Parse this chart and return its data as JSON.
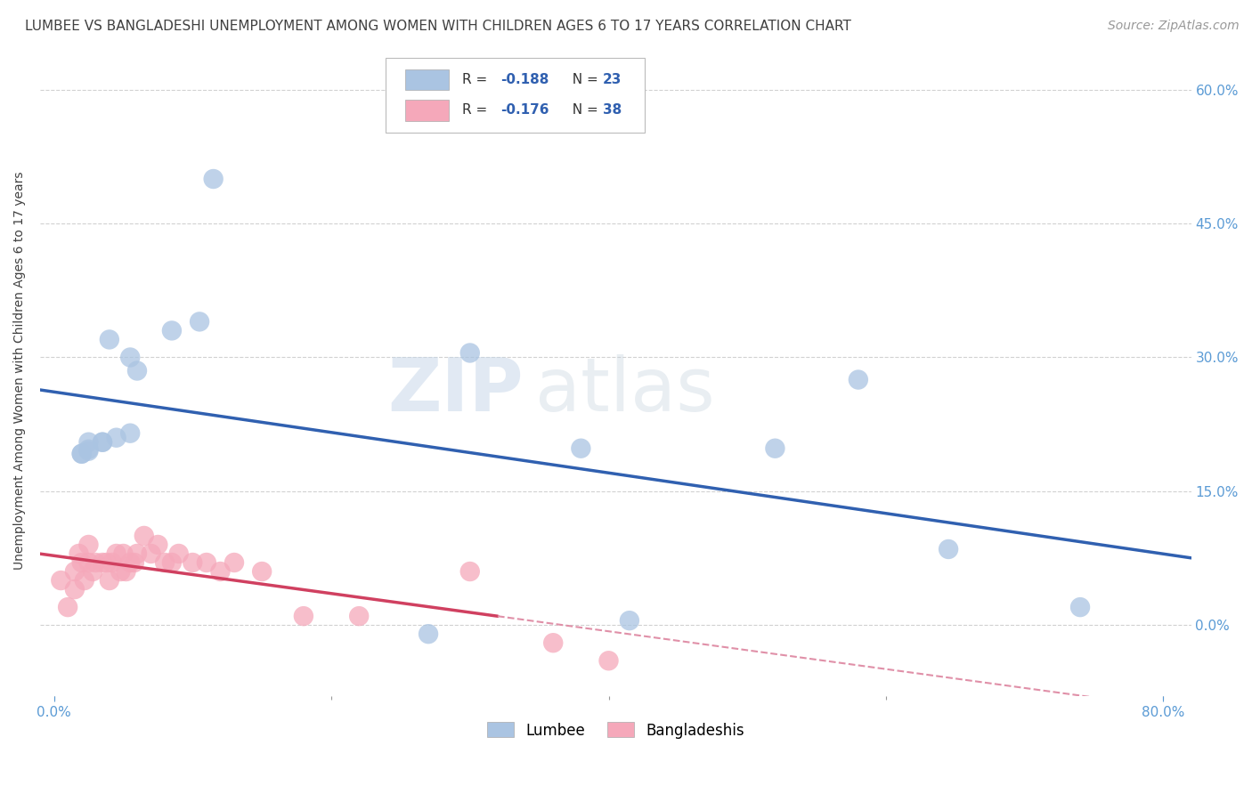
{
  "title": "LUMBEE VS BANGLADESHI UNEMPLOYMENT AMONG WOMEN WITH CHILDREN AGES 6 TO 17 YEARS CORRELATION CHART",
  "source": "Source: ZipAtlas.com",
  "ylabel": "Unemployment Among Women with Children Ages 6 to 17 years",
  "xlim": [
    -0.01,
    0.82
  ],
  "ylim": [
    -0.08,
    0.65
  ],
  "xticks": [
    0.0,
    0.2,
    0.4,
    0.6,
    0.8
  ],
  "xticklabels": [
    "0.0%",
    "",
    "",
    "",
    "80.0%"
  ],
  "yticks": [
    0.0,
    0.15,
    0.3,
    0.45,
    0.6
  ],
  "yticklabels": [
    "0.0%",
    "15.0%",
    "30.0%",
    "45.0%",
    "60.0%"
  ],
  "watermark_zip": "ZIP",
  "watermark_atlas": "atlas",
  "lumbee_R": "-0.188",
  "lumbee_N": "23",
  "bangladeshi_R": "-0.176",
  "bangladeshi_N": "38",
  "lumbee_color": "#aac4e2",
  "bangladeshi_color": "#f5a8ba",
  "lumbee_line_color": "#3060b0",
  "bangladeshi_line_color": "#d04060",
  "bangladeshi_line_dashed_color": "#e090a8",
  "legend_lumbee": "Lumbee",
  "legend_bangladeshi": "Bangladeshis",
  "lumbee_x": [
    0.085,
    0.115,
    0.105,
    0.04,
    0.055,
    0.06,
    0.035,
    0.025,
    0.035,
    0.045,
    0.055,
    0.3,
    0.025,
    0.02,
    0.02,
    0.025,
    0.38,
    0.52,
    0.58,
    0.74,
    0.645,
    0.27,
    0.415
  ],
  "lumbee_y": [
    0.33,
    0.5,
    0.34,
    0.32,
    0.3,
    0.285,
    0.205,
    0.205,
    0.205,
    0.21,
    0.215,
    0.305,
    0.195,
    0.192,
    0.192,
    0.197,
    0.198,
    0.198,
    0.275,
    0.02,
    0.085,
    -0.01,
    0.005
  ],
  "bangladeshi_x": [
    0.005,
    0.01,
    0.015,
    0.015,
    0.018,
    0.02,
    0.022,
    0.025,
    0.025,
    0.028,
    0.03,
    0.035,
    0.038,
    0.04,
    0.042,
    0.045,
    0.048,
    0.05,
    0.052,
    0.055,
    0.058,
    0.06,
    0.065,
    0.07,
    0.075,
    0.08,
    0.085,
    0.09,
    0.1,
    0.11,
    0.12,
    0.13,
    0.15,
    0.18,
    0.22,
    0.3,
    0.36,
    0.4
  ],
  "bangladeshi_y": [
    0.05,
    0.02,
    0.06,
    0.04,
    0.08,
    0.07,
    0.05,
    0.07,
    0.09,
    0.06,
    0.07,
    0.07,
    0.07,
    0.05,
    0.07,
    0.08,
    0.06,
    0.08,
    0.06,
    0.07,
    0.07,
    0.08,
    0.1,
    0.08,
    0.09,
    0.07,
    0.07,
    0.08,
    0.07,
    0.07,
    0.06,
    0.07,
    0.06,
    0.01,
    0.01,
    0.06,
    -0.02,
    -0.04
  ],
  "background_color": "#ffffff",
  "grid_color": "#cccccc",
  "title_color": "#404040",
  "axis_label_color": "#404040",
  "tick_color_blue": "#5b9bd5",
  "tick_color_black": "#000000",
  "title_fontsize": 11,
  "axis_label_fontsize": 10,
  "tick_fontsize": 11,
  "source_fontsize": 10,
  "legend_fontsize": 11
}
